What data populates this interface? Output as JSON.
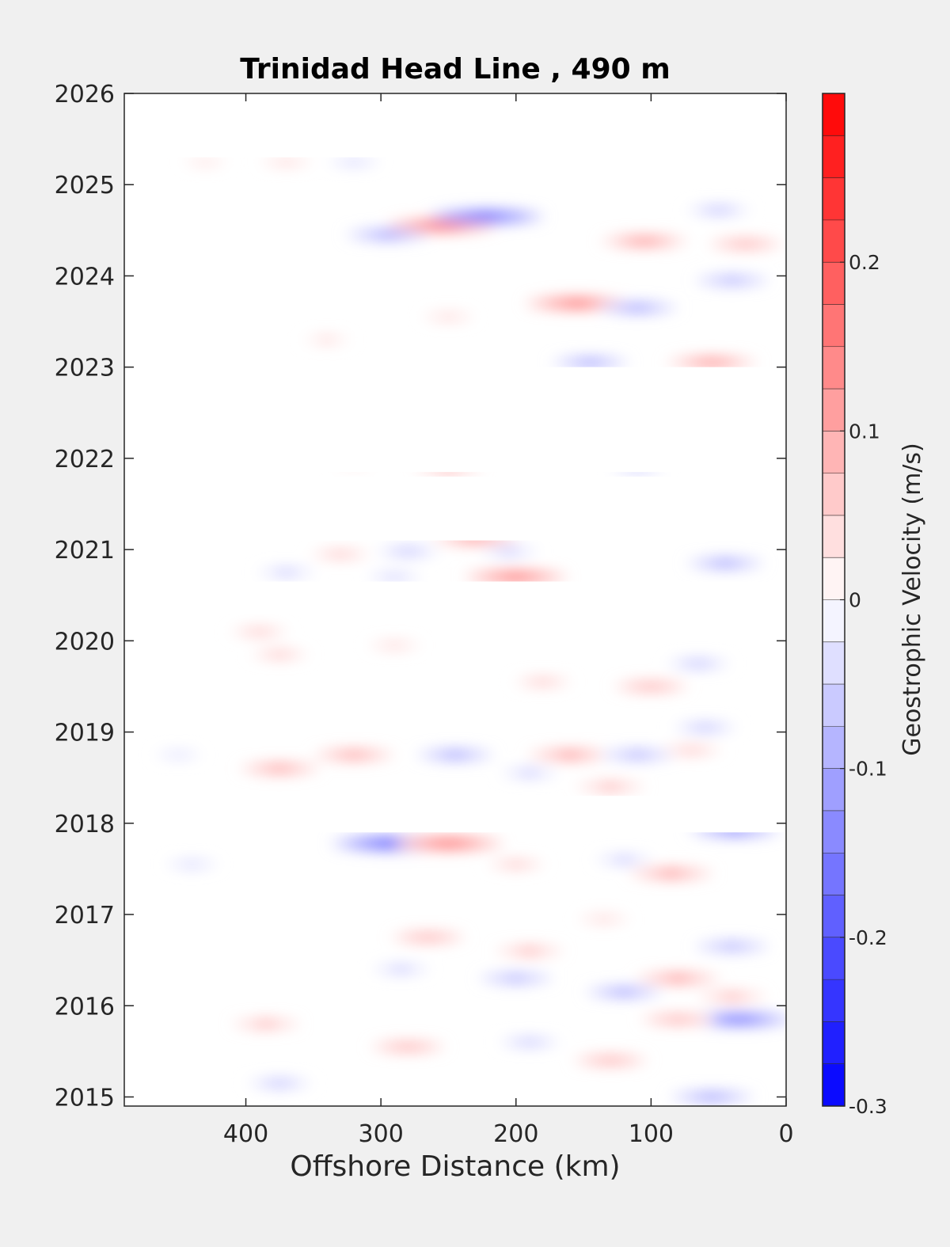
{
  "chart_data": {
    "type": "heatmap",
    "title": "Trinidad Head Line , 490 m",
    "xlabel": "Offshore Distance (km)",
    "ylabel": "",
    "x_reversed": true,
    "xlim": [
      0,
      490
    ],
    "ylim": [
      2014.9,
      2026
    ],
    "x_ticks": [
      400,
      300,
      200,
      100,
      0
    ],
    "x_tick_labels": [
      "400",
      "300",
      "200",
      "100",
      "0"
    ],
    "y_ticks": [
      2015,
      2016,
      2017,
      2018,
      2019,
      2020,
      2021,
      2022,
      2023,
      2024,
      2025,
      2026
    ],
    "y_tick_labels": [
      "2015",
      "2016",
      "2017",
      "2018",
      "2019",
      "2020",
      "2021",
      "2022",
      "2023",
      "2024",
      "2025",
      "2026"
    ],
    "grid": false,
    "colorbar": {
      "label": "Geostrophic Velocity (m/s)",
      "limits": [
        -0.3,
        0.3
      ],
      "levels": 24,
      "ticks": [
        -0.3,
        -0.2,
        -0.1,
        0,
        0.1,
        0.2
      ],
      "tick_labels": [
        "-0.3",
        "-0.2",
        "-0.1",
        "0",
        "0.1",
        "0.2"
      ],
      "colormap": "blue-white-red",
      "negative_color": "#0000ff",
      "zero_color": "#ffffff",
      "positive_color": "#ff0000"
    },
    "data_gaps": [
      {
        "from": 2021.85,
        "to": 2023.0
      },
      {
        "from": 2021.1,
        "to": 2021.8
      },
      {
        "from": 2020.3,
        "to": 2020.65
      },
      {
        "from": 2017.9,
        "to": 2018.3
      },
      {
        "from": 2025.3,
        "to": 2026
      }
    ],
    "features": [
      {
        "x": 255,
        "y": 2024.55,
        "value": 0.22
      },
      {
        "x": 222,
        "y": 2024.65,
        "value": -0.24
      },
      {
        "x": 295,
        "y": 2024.45,
        "value": -0.15
      },
      {
        "x": 155,
        "y": 2023.7,
        "value": 0.2
      },
      {
        "x": 105,
        "y": 2024.38,
        "value": 0.16
      },
      {
        "x": 110,
        "y": 2023.65,
        "value": -0.14
      },
      {
        "x": 55,
        "y": 2023.05,
        "value": 0.17
      },
      {
        "x": 145,
        "y": 2023.05,
        "value": -0.13
      },
      {
        "x": 40,
        "y": 2023.95,
        "value": -0.12
      },
      {
        "x": 50,
        "y": 2024.72,
        "value": -0.1
      },
      {
        "x": 30,
        "y": 2024.35,
        "value": 0.12
      },
      {
        "x": 370,
        "y": 2025.25,
        "value": 0.06
      },
      {
        "x": 320,
        "y": 2025.25,
        "value": -0.06
      },
      {
        "x": 430,
        "y": 2025.25,
        "value": 0.04
      },
      {
        "x": 250,
        "y": 2023.55,
        "value": 0.06
      },
      {
        "x": 340,
        "y": 2023.3,
        "value": 0.05
      },
      {
        "x": 250,
        "y": 2021.88,
        "value": 0.1
      },
      {
        "x": 110,
        "y": 2021.88,
        "value": -0.07
      },
      {
        "x": 320,
        "y": 2021.95,
        "value": 0.04
      },
      {
        "x": 230,
        "y": 2021.12,
        "value": 0.16
      },
      {
        "x": 200,
        "y": 2020.7,
        "value": 0.2
      },
      {
        "x": 280,
        "y": 2020.98,
        "value": -0.1
      },
      {
        "x": 205,
        "y": 2020.98,
        "value": -0.08
      },
      {
        "x": 45,
        "y": 2020.85,
        "value": -0.13
      },
      {
        "x": 330,
        "y": 2020.95,
        "value": 0.09
      },
      {
        "x": 370,
        "y": 2020.75,
        "value": -0.08
      },
      {
        "x": 290,
        "y": 2020.7,
        "value": -0.07
      },
      {
        "x": 375,
        "y": 2019.85,
        "value": 0.08
      },
      {
        "x": 390,
        "y": 2020.1,
        "value": 0.08
      },
      {
        "x": 290,
        "y": 2019.95,
        "value": 0.06
      },
      {
        "x": 100,
        "y": 2019.5,
        "value": 0.12
      },
      {
        "x": 65,
        "y": 2019.75,
        "value": -0.1
      },
      {
        "x": 180,
        "y": 2019.55,
        "value": 0.08
      },
      {
        "x": 320,
        "y": 2018.75,
        "value": 0.14
      },
      {
        "x": 375,
        "y": 2018.6,
        "value": 0.14
      },
      {
        "x": 245,
        "y": 2018.75,
        "value": -0.13
      },
      {
        "x": 160,
        "y": 2018.75,
        "value": 0.15
      },
      {
        "x": 110,
        "y": 2018.75,
        "value": -0.12
      },
      {
        "x": 70,
        "y": 2018.8,
        "value": 0.09
      },
      {
        "x": 130,
        "y": 2018.4,
        "value": 0.1
      },
      {
        "x": 190,
        "y": 2018.55,
        "value": -0.08
      },
      {
        "x": 450,
        "y": 2018.75,
        "value": -0.05
      },
      {
        "x": 60,
        "y": 2019.05,
        "value": -0.1
      },
      {
        "x": 290,
        "y": 2017.78,
        "value": -0.27
      },
      {
        "x": 250,
        "y": 2017.78,
        "value": 0.22
      },
      {
        "x": 85,
        "y": 2017.45,
        "value": 0.15
      },
      {
        "x": 120,
        "y": 2017.6,
        "value": -0.08
      },
      {
        "x": 38,
        "y": 2017.92,
        "value": -0.18
      },
      {
        "x": 200,
        "y": 2017.55,
        "value": 0.08
      },
      {
        "x": 440,
        "y": 2017.55,
        "value": -0.06
      },
      {
        "x": 265,
        "y": 2016.75,
        "value": 0.12
      },
      {
        "x": 190,
        "y": 2016.6,
        "value": 0.1
      },
      {
        "x": 80,
        "y": 2016.3,
        "value": 0.15
      },
      {
        "x": 120,
        "y": 2016.15,
        "value": -0.13
      },
      {
        "x": 200,
        "y": 2016.3,
        "value": -0.12
      },
      {
        "x": 40,
        "y": 2016.1,
        "value": 0.1
      },
      {
        "x": 35,
        "y": 2015.85,
        "value": -0.22
      },
      {
        "x": 40,
        "y": 2016.65,
        "value": -0.12
      },
      {
        "x": 80,
        "y": 2015.85,
        "value": 0.12
      },
      {
        "x": 280,
        "y": 2015.55,
        "value": 0.12
      },
      {
        "x": 190,
        "y": 2015.6,
        "value": -0.09
      },
      {
        "x": 385,
        "y": 2015.8,
        "value": 0.1
      },
      {
        "x": 130,
        "y": 2015.4,
        "value": 0.12
      },
      {
        "x": 375,
        "y": 2015.15,
        "value": -0.1
      },
      {
        "x": 55,
        "y": 2015.0,
        "value": -0.15
      },
      {
        "x": 285,
        "y": 2016.4,
        "value": -0.08
      },
      {
        "x": 135,
        "y": 2016.95,
        "value": 0.06
      }
    ]
  }
}
